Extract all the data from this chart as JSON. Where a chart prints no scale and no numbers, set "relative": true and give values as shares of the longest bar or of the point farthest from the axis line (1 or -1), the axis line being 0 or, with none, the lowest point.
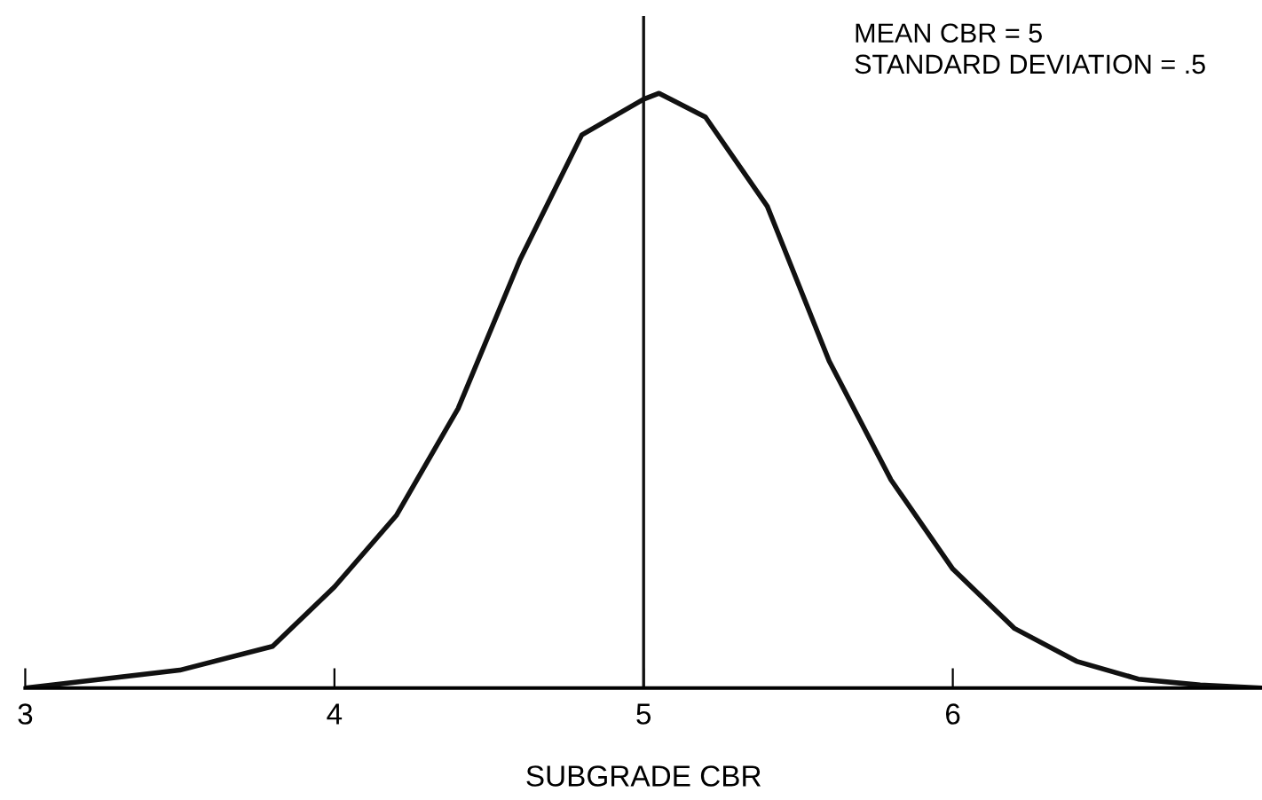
{
  "chart_data": {
    "type": "line",
    "relative": true,
    "xlabel": "SUBGRADE CBR",
    "annotations": [
      "MEAN CBR = 5",
      "STANDARD DEVIATION = .5"
    ],
    "x": [
      3,
      3.5,
      3.8,
      4.0,
      4.2,
      4.4,
      4.6,
      4.8,
      5.0,
      5.05,
      5.2,
      5.4,
      5.6,
      5.8,
      6.0,
      6.2,
      6.4,
      6.6,
      6.8,
      7.0
    ],
    "series": [
      {
        "color": "#111111",
        "values": [
          0.0,
          0.03,
          0.07,
          0.17,
          0.29,
          0.47,
          0.72,
          0.93,
          0.99,
          1.0,
          0.96,
          0.81,
          0.55,
          0.35,
          0.2,
          0.1,
          0.045,
          0.015,
          0.005,
          0.0
        ]
      }
    ],
    "xlim": [
      3,
      7
    ],
    "xticks": [
      3,
      4,
      5,
      6
    ],
    "ref_lines": [
      {
        "axis": "x",
        "value": 5,
        "color": "#111111"
      }
    ],
    "grid": false,
    "legend": false
  }
}
